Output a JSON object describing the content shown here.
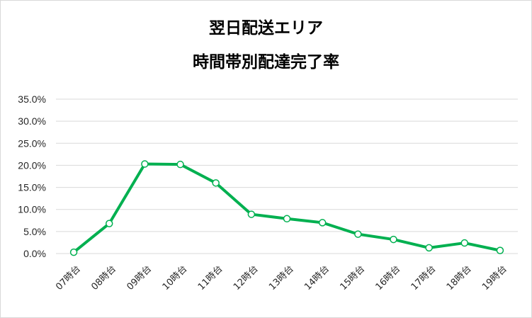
{
  "chart_data": {
    "type": "line",
    "title_lines": [
      "翌日配送エリア",
      "時間帯別配達完了率"
    ],
    "categories": [
      "07時台",
      "08時台",
      "09時台",
      "10時台",
      "11時台",
      "12時台",
      "13時台",
      "14時台",
      "15時台",
      "16時台",
      "17時台",
      "18時台",
      "19時台"
    ],
    "series": [
      {
        "values": [
          0.3,
          6.8,
          20.3,
          20.2,
          16.0,
          8.9,
          7.9,
          7.0,
          4.4,
          3.2,
          1.3,
          2.4,
          0.7
        ]
      }
    ],
    "ylim": [
      0,
      35
    ],
    "yticks": [
      0,
      5,
      10,
      15,
      20,
      25,
      30,
      35
    ],
    "ytick_labels": [
      "0.0%",
      "5.0%",
      "10.0%",
      "15.0%",
      "20.0%",
      "25.0%",
      "30.0%",
      "35.0%"
    ],
    "xlabel": "",
    "ylabel": "",
    "grid": true,
    "line_color": "#00b050",
    "marker_fill": "#ffffff",
    "gridline_color": "#d9d9d9"
  }
}
